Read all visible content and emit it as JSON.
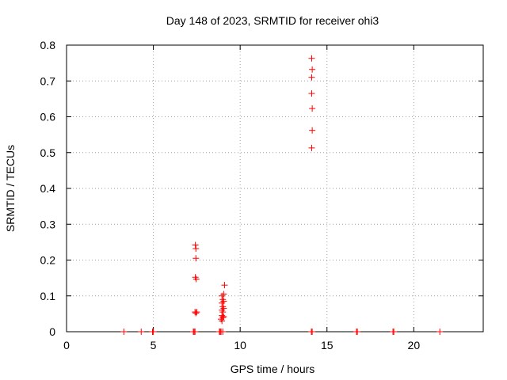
{
  "chart_data": {
    "type": "scatter",
    "title": "Day 148 of 2023, SRMTID for receiver ohi3",
    "xlabel": "GPS time / hours",
    "ylabel": "SRMTID / TECUs",
    "xlim": [
      0,
      24
    ],
    "ylim": [
      0,
      0.8
    ],
    "xticks": [
      0,
      5,
      10,
      15,
      20
    ],
    "xtick_labels": [
      "0",
      "5",
      "10",
      "15",
      "20"
    ],
    "yticks": [
      0,
      0.1,
      0.2,
      0.3,
      0.4,
      0.5,
      0.6,
      0.7,
      0.8
    ],
    "ytick_labels": [
      "0",
      "0.1",
      "0.2",
      "0.3",
      "0.4",
      "0.5",
      "0.6",
      "0.7",
      "0.8"
    ],
    "grid": true,
    "marker": "plus",
    "colors": {
      "points": "#ff0000",
      "grid": "#a0a0a0",
      "axis": "#000000"
    },
    "series": [
      {
        "name": "SRMTID",
        "points": [
          [
            3.3,
            0
          ],
          [
            4.3,
            0
          ],
          [
            4.95,
            0
          ],
          [
            5.0,
            0
          ],
          [
            7.3,
            0
          ],
          [
            7.35,
            0
          ],
          [
            7.4,
            0
          ],
          [
            7.42,
            0.242
          ],
          [
            7.45,
            0.232
          ],
          [
            7.45,
            0.205
          ],
          [
            7.42,
            0.152
          ],
          [
            7.47,
            0.147
          ],
          [
            7.4,
            0.055
          ],
          [
            7.45,
            0.052
          ],
          [
            7.5,
            0.055
          ],
          [
            8.8,
            0
          ],
          [
            8.85,
            0
          ],
          [
            8.9,
            0
          ],
          [
            9.0,
            0
          ],
          [
            8.95,
            0.03
          ],
          [
            8.9,
            0.035
          ],
          [
            9.0,
            0.04
          ],
          [
            9.05,
            0.042
          ],
          [
            8.95,
            0.045
          ],
          [
            9.0,
            0.055
          ],
          [
            8.95,
            0.06
          ],
          [
            9.05,
            0.065
          ],
          [
            9.0,
            0.07
          ],
          [
            8.95,
            0.08
          ],
          [
            9.05,
            0.085
          ],
          [
            9.0,
            0.09
          ],
          [
            8.95,
            0.1
          ],
          [
            9.05,
            0.105
          ],
          [
            9.1,
            0.13
          ],
          [
            14.1,
            0
          ],
          [
            14.15,
            0
          ],
          [
            14.12,
            0.763
          ],
          [
            14.15,
            0.732
          ],
          [
            14.12,
            0.71
          ],
          [
            14.12,
            0.665
          ],
          [
            14.15,
            0.623
          ],
          [
            14.15,
            0.562
          ],
          [
            14.12,
            0.513
          ],
          [
            16.7,
            0
          ],
          [
            16.75,
            0
          ],
          [
            18.8,
            0
          ],
          [
            18.85,
            0
          ],
          [
            21.5,
            0
          ]
        ]
      }
    ]
  }
}
